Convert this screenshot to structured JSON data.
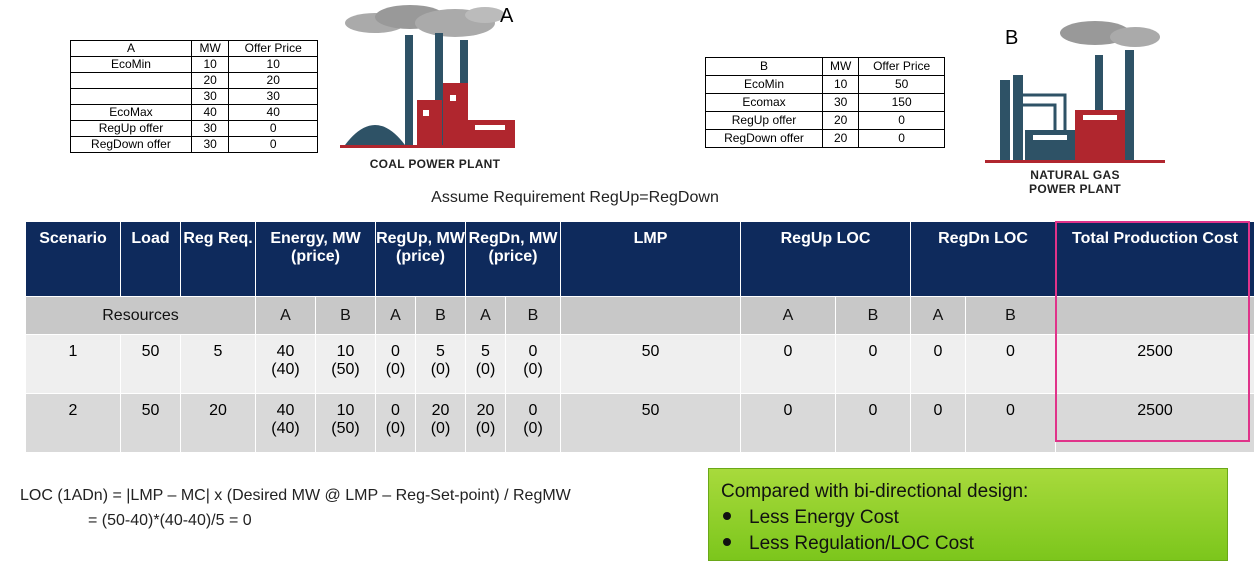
{
  "table_a": {
    "header": [
      "A",
      "MW",
      "Offer Price"
    ],
    "rows": [
      [
        "EcoMin",
        "10",
        "10"
      ],
      [
        null,
        "20",
        "20"
      ],
      [
        null,
        "30",
        "30"
      ],
      [
        "EcoMax",
        "40",
        "40"
      ],
      [
        "RegUp offer",
        "30",
        "0"
      ],
      [
        "RegDown offer",
        "30",
        "0"
      ]
    ]
  },
  "plant_a": {
    "letter": "A",
    "caption": [
      "COAL POWER PLANT"
    ]
  },
  "table_b": {
    "header": [
      "B",
      "MW",
      "Offer Price"
    ],
    "rows": [
      [
        "EcoMin",
        "10",
        "50"
      ],
      [
        "Ecomax",
        "30",
        "150"
      ],
      [
        "RegUp offer",
        "20",
        "0"
      ],
      [
        "RegDown offer",
        "20",
        "0"
      ]
    ]
  },
  "plant_b": {
    "letter": "B",
    "caption": [
      "NATURAL GAS",
      "POWER PLANT"
    ]
  },
  "assumption": "Assume Requirement RegUp=RegDown",
  "main_table": {
    "header": [
      "Scenario",
      "Load",
      "Reg Req.",
      "Energy, MW (price)",
      "RegUp, MW (price)",
      "RegDn, MW (price)",
      "LMP",
      "RegUp LOC",
      "RegDn LOC",
      "Total Production Cost"
    ],
    "subheader": [
      "Resources",
      "A",
      "B",
      "A",
      "B",
      "A",
      "B",
      null,
      "A",
      "B",
      "A",
      "B",
      null
    ],
    "rows": [
      [
        [
          "1"
        ],
        [
          "50"
        ],
        [
          "5"
        ],
        [
          "40",
          "(40)"
        ],
        [
          "10",
          "(50)"
        ],
        [
          "0",
          "(0)"
        ],
        [
          "5",
          "(0)"
        ],
        [
          "5",
          "(0)"
        ],
        [
          "0",
          "(0)"
        ],
        [
          "50"
        ],
        [
          "0"
        ],
        [
          "0"
        ],
        [
          "0"
        ],
        [
          "0"
        ],
        [
          "2500"
        ]
      ],
      [
        [
          "2"
        ],
        [
          "50"
        ],
        [
          "20"
        ],
        [
          "40",
          "(40)"
        ],
        [
          "10",
          "(50)"
        ],
        [
          "0",
          "(0)"
        ],
        [
          "20",
          "(0)"
        ],
        [
          "20",
          "(0)"
        ],
        [
          "0",
          "(0)"
        ],
        [
          "50"
        ],
        [
          "0"
        ],
        [
          "0"
        ],
        [
          "0"
        ],
        [
          "0"
        ],
        [
          "2500"
        ]
      ]
    ]
  },
  "formula": [
    "LOC (1ADn) = |LMP – MC| x (Desired MW @ LMP – Reg-Set-point) / RegMW",
    "= (50-40)*(40-40)/5 = 0"
  ],
  "callout": {
    "title": "Compared with bi-directional design:",
    "bullets": [
      "Less Energy Cost",
      "Less Regulation/LOC Cost"
    ]
  }
}
